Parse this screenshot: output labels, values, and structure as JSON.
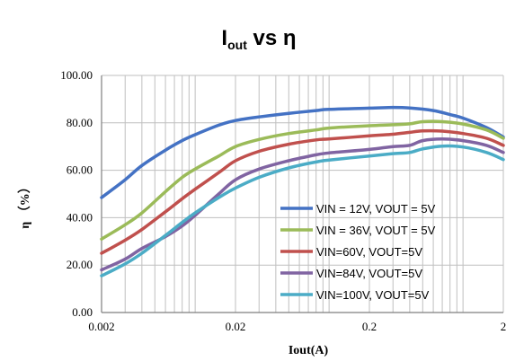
{
  "chart_data": {
    "type": "line",
    "title_main": "I",
    "title_sub": "out",
    "title_rest": " vs η",
    "xlabel": "Iout(A)",
    "ylabel": "η （%）",
    "xscale": "log",
    "xlim": [
      0.002,
      2
    ],
    "ylim": [
      0,
      100
    ],
    "x_ticks": [
      0.002,
      0.02,
      0.2,
      2
    ],
    "x_tick_labels": [
      "0.002",
      "0.02",
      "0.2",
      "2"
    ],
    "y_ticks": [
      0,
      20,
      40,
      60,
      80,
      100
    ],
    "y_tick_labels": [
      "0.00",
      "20.00",
      "40.00",
      "60.00",
      "80.00",
      "100.00"
    ],
    "grid": "major and minor vertical (log), major horizontal",
    "legend_position": "lower-right",
    "series": [
      {
        "name": "VIN = 12V, VOUT = 5V",
        "color": "#4472c4",
        "points": [
          [
            0.002,
            48.5
          ],
          [
            0.003,
            56
          ],
          [
            0.004,
            62
          ],
          [
            0.006,
            68.5
          ],
          [
            0.008,
            72.5
          ],
          [
            0.01,
            75
          ],
          [
            0.015,
            79
          ],
          [
            0.02,
            81
          ],
          [
            0.03,
            82.5
          ],
          [
            0.05,
            84
          ],
          [
            0.08,
            85.2
          ],
          [
            0.1,
            85.7
          ],
          [
            0.2,
            86.2
          ],
          [
            0.3,
            86.5
          ],
          [
            0.4,
            86.3
          ],
          [
            0.6,
            85.2
          ],
          [
            0.8,
            83.5
          ],
          [
            1.0,
            82
          ],
          [
            1.5,
            78
          ],
          [
            2.0,
            74
          ]
        ]
      },
      {
        "name": "VIN = 36V, VOUT = 5V",
        "color": "#9bbb59",
        "points": [
          [
            0.002,
            31
          ],
          [
            0.003,
            37
          ],
          [
            0.004,
            42
          ],
          [
            0.006,
            51
          ],
          [
            0.008,
            57
          ],
          [
            0.01,
            60.5
          ],
          [
            0.015,
            66
          ],
          [
            0.02,
            70
          ],
          [
            0.03,
            73
          ],
          [
            0.05,
            75.5
          ],
          [
            0.08,
            77
          ],
          [
            0.1,
            77.8
          ],
          [
            0.2,
            78.8
          ],
          [
            0.3,
            79.2
          ],
          [
            0.4,
            79.6
          ],
          [
            0.5,
            80.5
          ],
          [
            0.7,
            80.5
          ],
          [
            1.0,
            79.5
          ],
          [
            1.5,
            77
          ],
          [
            2.0,
            73.5
          ]
        ]
      },
      {
        "name": "VIN=60V, VOUT=5V",
        "color": "#c0504d",
        "points": [
          [
            0.002,
            25
          ],
          [
            0.003,
            30.5
          ],
          [
            0.004,
            35
          ],
          [
            0.006,
            42.5
          ],
          [
            0.008,
            48
          ],
          [
            0.01,
            52
          ],
          [
            0.015,
            59
          ],
          [
            0.02,
            64
          ],
          [
            0.03,
            68
          ],
          [
            0.05,
            71
          ],
          [
            0.08,
            72.8
          ],
          [
            0.1,
            73.2
          ],
          [
            0.2,
            74.5
          ],
          [
            0.3,
            75.2
          ],
          [
            0.4,
            76
          ],
          [
            0.5,
            76.6
          ],
          [
            0.7,
            76.5
          ],
          [
            1.0,
            75.5
          ],
          [
            1.5,
            73.5
          ],
          [
            2.0,
            70.5
          ]
        ]
      },
      {
        "name": "VIN=84V, VOUT=5V",
        "color": "#8064a2",
        "points": [
          [
            0.002,
            18
          ],
          [
            0.003,
            22.5
          ],
          [
            0.004,
            27
          ],
          [
            0.006,
            32
          ],
          [
            0.008,
            36.5
          ],
          [
            0.01,
            41
          ],
          [
            0.015,
            50
          ],
          [
            0.02,
            56
          ],
          [
            0.03,
            60.5
          ],
          [
            0.05,
            64
          ],
          [
            0.08,
            66.5
          ],
          [
            0.1,
            67.3
          ],
          [
            0.2,
            68.8
          ],
          [
            0.3,
            70
          ],
          [
            0.4,
            70.5
          ],
          [
            0.5,
            72.5
          ],
          [
            0.7,
            73.2
          ],
          [
            1.0,
            72.5
          ],
          [
            1.5,
            70.5
          ],
          [
            2.0,
            67.5
          ]
        ]
      },
      {
        "name": "VIN=100V, VOUT=5V",
        "color": "#4bacc6",
        "points": [
          [
            0.002,
            15.5
          ],
          [
            0.003,
            20.5
          ],
          [
            0.004,
            25
          ],
          [
            0.006,
            32.5
          ],
          [
            0.008,
            38
          ],
          [
            0.01,
            42
          ],
          [
            0.015,
            48.5
          ],
          [
            0.02,
            52.5
          ],
          [
            0.03,
            57
          ],
          [
            0.05,
            61
          ],
          [
            0.08,
            63.5
          ],
          [
            0.1,
            64.3
          ],
          [
            0.2,
            66
          ],
          [
            0.3,
            67
          ],
          [
            0.4,
            67.5
          ],
          [
            0.5,
            69
          ],
          [
            0.7,
            70.2
          ],
          [
            1.0,
            69.8
          ],
          [
            1.5,
            67.5
          ],
          [
            2.0,
            64.5
          ]
        ]
      }
    ]
  }
}
